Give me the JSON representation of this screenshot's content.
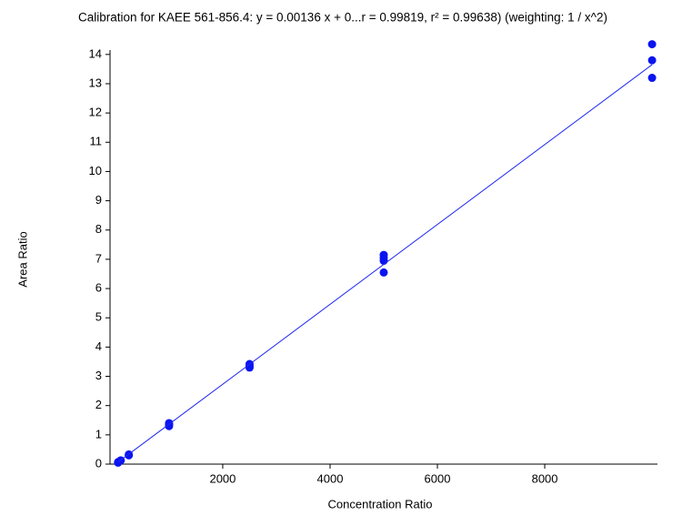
{
  "chart_data": {
    "type": "scatter",
    "title": "Calibration for KAEE 561-856.4: y = 0.00136 x + 0...r = 0.99819, r² = 0.99638)  (weighting: 1 / x^2)",
    "xlabel": "Concentration Ratio",
    "ylabel": "Area Ratio",
    "xlim": [
      -100,
      10100
    ],
    "ylim": [
      0,
      14.15
    ],
    "xticks": [
      2000,
      4000,
      6000,
      8000
    ],
    "yticks": [
      0,
      1,
      2,
      3,
      4,
      5,
      6,
      7,
      8,
      9,
      10,
      11,
      12,
      13,
      14
    ],
    "series": [
      {
        "color": "#0a14f0",
        "x": [
          50,
          50,
          100,
          250,
          250,
          1000,
          1000,
          1000,
          2500,
          2500,
          2500,
          5000,
          5000,
          5000,
          5000,
          10000,
          10000,
          10000
        ],
        "values": [
          0.05,
          0.07,
          0.13,
          0.3,
          0.33,
          1.3,
          1.35,
          1.4,
          3.3,
          3.35,
          3.42,
          6.55,
          6.95,
          7.05,
          7.15,
          13.2,
          13.8,
          14.35
        ]
      },
      {
        "type": "line",
        "color": "#1e28f0",
        "x": [
          50,
          10000
        ],
        "values": [
          0.068,
          13.65
        ]
      }
    ]
  }
}
